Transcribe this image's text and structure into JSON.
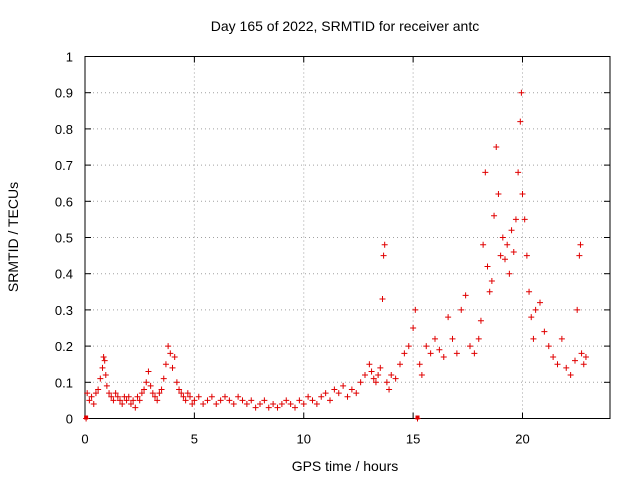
{
  "chart_data": {
    "type": "scatter",
    "title": "Day 165 of 2022, SRMTID for receiver antc",
    "xlabel": "GPS time / hours",
    "ylabel": "SRMTID / TECUs",
    "xlim": [
      0,
      24
    ],
    "ylim": [
      0,
      1
    ],
    "xticks": [
      0,
      5,
      10,
      15,
      20
    ],
    "yticks": [
      0,
      0.1,
      0.2,
      0.3,
      0.4,
      0.5,
      0.6,
      0.7,
      0.8,
      0.9,
      1
    ],
    "xtick_labels": [
      "0",
      "5",
      "10",
      "15",
      "20"
    ],
    "ytick_labels": [
      "0",
      "0.1",
      "0.2",
      "0.3",
      "0.4",
      "0.5",
      "0.6",
      "0.7",
      "0.8",
      "0.9",
      "1"
    ],
    "grid": true,
    "marker": "+",
    "color": "#e00000",
    "series": [
      {
        "name": "SRMTID",
        "points": [
          [
            0.05,
            0.0
          ],
          [
            0.1,
            0.07
          ],
          [
            0.2,
            0.05
          ],
          [
            0.3,
            0.06
          ],
          [
            0.4,
            0.04
          ],
          [
            0.5,
            0.07
          ],
          [
            0.6,
            0.08
          ],
          [
            0.7,
            0.11
          ],
          [
            0.8,
            0.14
          ],
          [
            0.85,
            0.17
          ],
          [
            0.9,
            0.16
          ],
          [
            0.95,
            0.12
          ],
          [
            1.0,
            0.09
          ],
          [
            1.1,
            0.07
          ],
          [
            1.2,
            0.06
          ],
          [
            1.3,
            0.05
          ],
          [
            1.4,
            0.07
          ],
          [
            1.5,
            0.06
          ],
          [
            1.6,
            0.05
          ],
          [
            1.7,
            0.04
          ],
          [
            1.8,
            0.06
          ],
          [
            1.9,
            0.05
          ],
          [
            2.0,
            0.06
          ],
          [
            2.1,
            0.04
          ],
          [
            2.2,
            0.05
          ],
          [
            2.3,
            0.03
          ],
          [
            2.4,
            0.06
          ],
          [
            2.5,
            0.05
          ],
          [
            2.6,
            0.07
          ],
          [
            2.7,
            0.08
          ],
          [
            2.8,
            0.1
          ],
          [
            2.9,
            0.13
          ],
          [
            3.0,
            0.09
          ],
          [
            3.1,
            0.07
          ],
          [
            3.2,
            0.06
          ],
          [
            3.3,
            0.05
          ],
          [
            3.4,
            0.07
          ],
          [
            3.5,
            0.08
          ],
          [
            3.6,
            0.11
          ],
          [
            3.7,
            0.15
          ],
          [
            3.8,
            0.2
          ],
          [
            3.9,
            0.18
          ],
          [
            4.0,
            0.14
          ],
          [
            4.1,
            0.17
          ],
          [
            4.2,
            0.1
          ],
          [
            4.3,
            0.08
          ],
          [
            4.4,
            0.07
          ],
          [
            4.5,
            0.06
          ],
          [
            4.6,
            0.05
          ],
          [
            4.7,
            0.07
          ],
          [
            4.8,
            0.06
          ],
          [
            4.9,
            0.04
          ],
          [
            5.0,
            0.05
          ],
          [
            5.2,
            0.06
          ],
          [
            5.4,
            0.04
          ],
          [
            5.6,
            0.05
          ],
          [
            5.8,
            0.06
          ],
          [
            6.0,
            0.04
          ],
          [
            6.2,
            0.05
          ],
          [
            6.4,
            0.06
          ],
          [
            6.6,
            0.05
          ],
          [
            6.8,
            0.04
          ],
          [
            7.0,
            0.06
          ],
          [
            7.2,
            0.05
          ],
          [
            7.4,
            0.04
          ],
          [
            7.6,
            0.05
          ],
          [
            7.8,
            0.03
          ],
          [
            8.0,
            0.04
          ],
          [
            8.2,
            0.05
          ],
          [
            8.4,
            0.03
          ],
          [
            8.6,
            0.04
          ],
          [
            8.8,
            0.03
          ],
          [
            9.0,
            0.04
          ],
          [
            9.2,
            0.05
          ],
          [
            9.4,
            0.04
          ],
          [
            9.6,
            0.03
          ],
          [
            9.8,
            0.05
          ],
          [
            10.0,
            0.04
          ],
          [
            10.2,
            0.06
          ],
          [
            10.4,
            0.05
          ],
          [
            10.6,
            0.04
          ],
          [
            10.8,
            0.06
          ],
          [
            11.0,
            0.07
          ],
          [
            11.2,
            0.05
          ],
          [
            11.4,
            0.08
          ],
          [
            11.6,
            0.07
          ],
          [
            11.8,
            0.09
          ],
          [
            12.0,
            0.06
          ],
          [
            12.2,
            0.08
          ],
          [
            12.4,
            0.07
          ],
          [
            12.6,
            0.1
          ],
          [
            12.8,
            0.12
          ],
          [
            13.0,
            0.15
          ],
          [
            13.1,
            0.13
          ],
          [
            13.2,
            0.11
          ],
          [
            13.3,
            0.1
          ],
          [
            13.4,
            0.12
          ],
          [
            13.5,
            0.14
          ],
          [
            13.6,
            0.33
          ],
          [
            13.65,
            0.45
          ],
          [
            13.7,
            0.48
          ],
          [
            13.8,
            0.1
          ],
          [
            13.9,
            0.08
          ],
          [
            14.0,
            0.12
          ],
          [
            14.2,
            0.11
          ],
          [
            14.4,
            0.15
          ],
          [
            14.6,
            0.18
          ],
          [
            14.8,
            0.2
          ],
          [
            15.0,
            0.25
          ],
          [
            15.1,
            0.3
          ],
          [
            15.2,
            0.0
          ],
          [
            15.3,
            0.15
          ],
          [
            15.4,
            0.12
          ],
          [
            15.6,
            0.2
          ],
          [
            15.8,
            0.18
          ],
          [
            16.0,
            0.22
          ],
          [
            16.2,
            0.19
          ],
          [
            16.4,
            0.17
          ],
          [
            16.6,
            0.28
          ],
          [
            16.8,
            0.22
          ],
          [
            17.0,
            0.18
          ],
          [
            17.2,
            0.3
          ],
          [
            17.4,
            0.34
          ],
          [
            17.6,
            0.2
          ],
          [
            17.8,
            0.18
          ],
          [
            18.0,
            0.22
          ],
          [
            18.1,
            0.27
          ],
          [
            18.2,
            0.48
          ],
          [
            18.3,
            0.68
          ],
          [
            18.4,
            0.42
          ],
          [
            18.5,
            0.35
          ],
          [
            18.6,
            0.38
          ],
          [
            18.7,
            0.56
          ],
          [
            18.8,
            0.75
          ],
          [
            18.9,
            0.62
          ],
          [
            19.0,
            0.45
          ],
          [
            19.1,
            0.5
          ],
          [
            19.2,
            0.44
          ],
          [
            19.3,
            0.48
          ],
          [
            19.4,
            0.4
          ],
          [
            19.5,
            0.52
          ],
          [
            19.6,
            0.46
          ],
          [
            19.7,
            0.55
          ],
          [
            19.8,
            0.68
          ],
          [
            19.9,
            0.82
          ],
          [
            19.95,
            0.9
          ],
          [
            20.0,
            0.62
          ],
          [
            20.1,
            0.55
          ],
          [
            20.2,
            0.45
          ],
          [
            20.3,
            0.35
          ],
          [
            20.4,
            0.28
          ],
          [
            20.5,
            0.22
          ],
          [
            20.6,
            0.3
          ],
          [
            20.8,
            0.32
          ],
          [
            21.0,
            0.24
          ],
          [
            21.2,
            0.2
          ],
          [
            21.4,
            0.17
          ],
          [
            21.6,
            0.15
          ],
          [
            21.8,
            0.22
          ],
          [
            22.0,
            0.14
          ],
          [
            22.2,
            0.12
          ],
          [
            22.4,
            0.16
          ],
          [
            22.5,
            0.3
          ],
          [
            22.6,
            0.45
          ],
          [
            22.65,
            0.48
          ],
          [
            22.7,
            0.18
          ],
          [
            22.8,
            0.15
          ],
          [
            22.9,
            0.17
          ]
        ]
      }
    ],
    "baseline_markers_x": [
      0.05,
      15.2
    ]
  }
}
